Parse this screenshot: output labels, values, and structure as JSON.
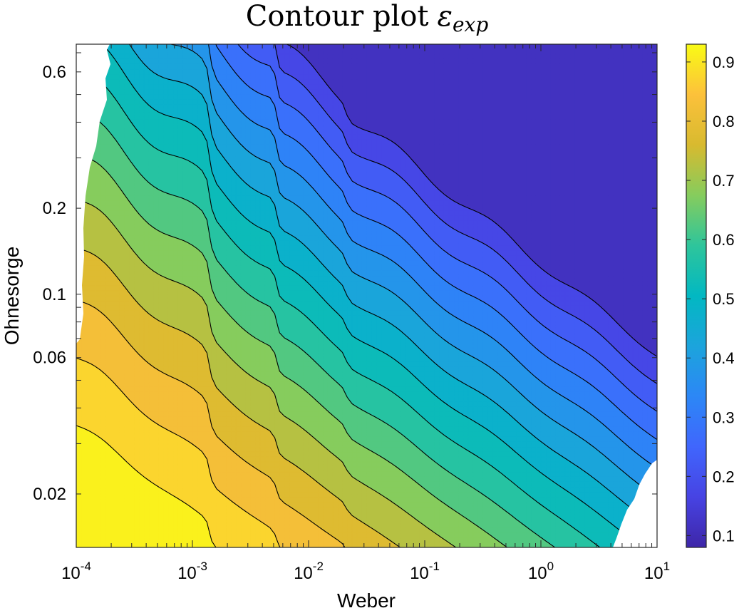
{
  "chart_data": {
    "type": "heatmap",
    "subtype": "filled contour",
    "title": "Contour plot",
    "title_symbol": "ε",
    "title_subscript": "exp",
    "xlabel": "Weber",
    "ylabel": "Ohnesorge",
    "x_scale": "log",
    "y_scale": "log",
    "xlim": [
      0.0001,
      10
    ],
    "ylim": [
      0.013,
      0.75
    ],
    "x_ticks": [
      {
        "base": "10",
        "exp": "-4",
        "value": 0.0001
      },
      {
        "base": "10",
        "exp": "-3",
        "value": 0.001
      },
      {
        "base": "10",
        "exp": "-2",
        "value": 0.01
      },
      {
        "base": "10",
        "exp": "-1",
        "value": 0.1
      },
      {
        "base": "10",
        "exp": "0",
        "value": 1
      },
      {
        "base": "10",
        "exp": "1",
        "value": 10
      }
    ],
    "y_ticks": [
      {
        "label": "0.6",
        "value": 0.6
      },
      {
        "label": "0.2",
        "value": 0.2
      },
      {
        "label": "0.1",
        "value": 0.1
      },
      {
        "label": "0.06",
        "value": 0.06
      },
      {
        "label": "0.02",
        "value": 0.02
      }
    ],
    "colorbar": {
      "colormap": "parula",
      "range": [
        0.08,
        0.93
      ],
      "ticks": [
        "0.1",
        "0.2",
        "0.3",
        "0.4",
        "0.5",
        "0.6",
        "0.7",
        "0.8",
        "0.9"
      ],
      "tick_values": [
        0.1,
        0.2,
        0.3,
        0.4,
        0.5,
        0.6,
        0.7,
        0.8,
        0.9
      ]
    },
    "contour_levels": [
      0.15,
      0.2,
      0.25,
      0.3,
      0.35,
      0.4,
      0.45,
      0.5,
      0.55,
      0.6,
      0.65,
      0.7,
      0.75,
      0.8,
      0.85,
      0.9
    ],
    "value_range_in_plot": {
      "min": 0.08,
      "max": 0.93
    },
    "grid": false,
    "legend": "none"
  }
}
